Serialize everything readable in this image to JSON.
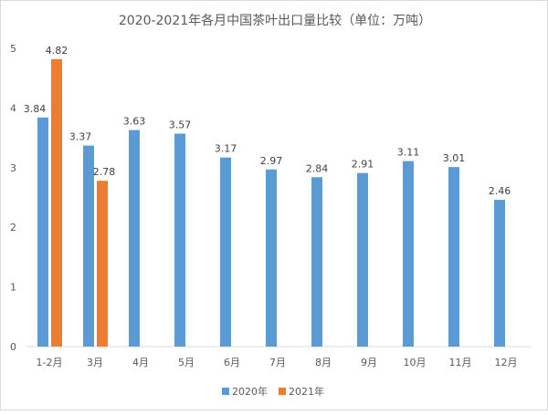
{
  "chart_data": {
    "type": "bar",
    "title": "2020-2021年各月中国茶叶出口量比较（单位：万吨）",
    "categories": [
      "1-2月",
      "3月",
      "4月",
      "5月",
      "6月",
      "7月",
      "8月",
      "9月",
      "10月",
      "11月",
      "12月"
    ],
    "series": [
      {
        "name": "2020年",
        "color": "#5b9bd5",
        "values": [
          3.84,
          3.37,
          3.63,
          3.57,
          3.17,
          2.97,
          2.84,
          2.91,
          3.11,
          3.01,
          2.46
        ]
      },
      {
        "name": "2021年",
        "color": "#ed7d31",
        "values": [
          4.82,
          2.78,
          null,
          null,
          null,
          null,
          null,
          null,
          null,
          null,
          null
        ]
      }
    ],
    "ylim": [
      0,
      5
    ],
    "yticks": [
      0,
      1,
      2,
      3,
      4,
      5
    ],
    "grid": false,
    "legend": "bottom"
  }
}
